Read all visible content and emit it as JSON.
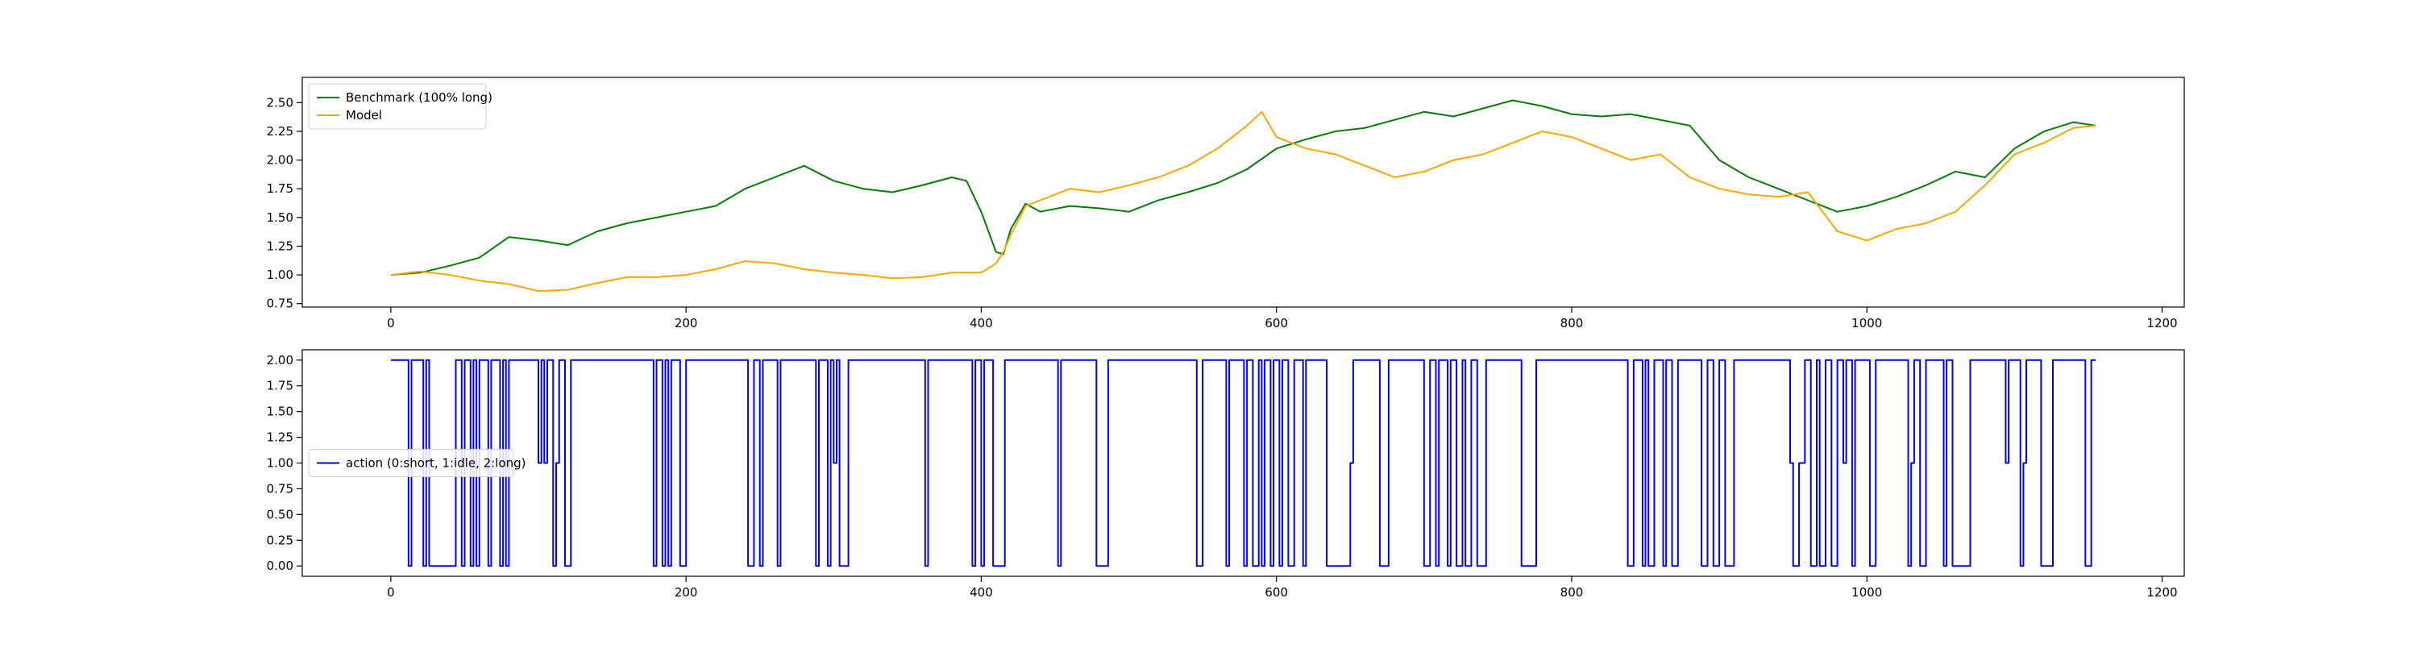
{
  "chart_data": [
    {
      "type": "line",
      "title": "",
      "xlabel": "",
      "ylabel": "",
      "xlim": [
        -60,
        1215
      ],
      "ylim": [
        0.72,
        2.72
      ],
      "xticks": [
        0,
        200,
        400,
        600,
        800,
        1000,
        1200
      ],
      "xtick_labels": [
        "0",
        "200",
        "400",
        "600",
        "800",
        "1000",
        "1200"
      ],
      "yticks": [
        0.75,
        1.0,
        1.25,
        1.5,
        1.75,
        2.0,
        2.25,
        2.5
      ],
      "ytick_labels": [
        "0.75",
        "1.00",
        "1.25",
        "1.50",
        "1.75",
        "2.00",
        "2.25",
        "2.50"
      ],
      "grid": false,
      "legend_position": "upper left",
      "series": [
        {
          "name": "Benchmark (100% long)",
          "color": "#008000",
          "x": [
            0,
            20,
            40,
            60,
            80,
            100,
            120,
            140,
            160,
            180,
            200,
            220,
            240,
            260,
            280,
            300,
            320,
            340,
            360,
            380,
            390,
            400,
            410,
            415,
            420,
            430,
            440,
            460,
            480,
            500,
            520,
            540,
            560,
            580,
            600,
            620,
            640,
            660,
            680,
            700,
            720,
            740,
            760,
            780,
            800,
            820,
            840,
            860,
            880,
            900,
            920,
            940,
            960,
            980,
            1000,
            1020,
            1040,
            1060,
            1080,
            1100,
            1120,
            1140,
            1155
          ],
          "values": [
            1.0,
            1.02,
            1.08,
            1.15,
            1.33,
            1.3,
            1.26,
            1.38,
            1.45,
            1.5,
            1.55,
            1.6,
            1.75,
            1.85,
            1.95,
            1.82,
            1.75,
            1.72,
            1.78,
            1.85,
            1.82,
            1.55,
            1.2,
            1.18,
            1.4,
            1.62,
            1.55,
            1.6,
            1.58,
            1.55,
            1.65,
            1.72,
            1.8,
            1.92,
            2.1,
            2.18,
            2.25,
            2.28,
            2.35,
            2.42,
            2.38,
            2.45,
            2.52,
            2.47,
            2.4,
            2.38,
            2.4,
            2.35,
            2.3,
            2.0,
            1.85,
            1.75,
            1.65,
            1.55,
            1.6,
            1.68,
            1.78,
            1.9,
            1.85,
            2.1,
            2.25,
            2.33,
            2.3
          ]
        },
        {
          "name": "Model",
          "color": "#FFA500",
          "x": [
            0,
            20,
            40,
            60,
            80,
            100,
            120,
            140,
            160,
            180,
            200,
            220,
            240,
            260,
            280,
            300,
            320,
            340,
            360,
            380,
            400,
            410,
            415,
            420,
            430,
            440,
            460,
            480,
            500,
            520,
            540,
            560,
            580,
            590,
            600,
            620,
            640,
            660,
            680,
            700,
            720,
            740,
            760,
            780,
            800,
            820,
            840,
            860,
            880,
            900,
            920,
            940,
            960,
            980,
            1000,
            1020,
            1040,
            1060,
            1080,
            1100,
            1120,
            1140,
            1155
          ],
          "values": [
            1.0,
            1.03,
            1.0,
            0.95,
            0.92,
            0.86,
            0.87,
            0.93,
            0.98,
            0.98,
            1.0,
            1.05,
            1.12,
            1.1,
            1.05,
            1.02,
            1.0,
            0.97,
            0.98,
            1.02,
            1.02,
            1.1,
            1.2,
            1.35,
            1.6,
            1.65,
            1.75,
            1.72,
            1.78,
            1.85,
            1.95,
            2.1,
            2.3,
            2.42,
            2.2,
            2.1,
            2.05,
            1.95,
            1.85,
            1.9,
            2.0,
            2.05,
            2.15,
            2.25,
            2.2,
            2.1,
            2.0,
            2.05,
            1.85,
            1.75,
            1.7,
            1.68,
            1.72,
            1.38,
            1.3,
            1.4,
            1.45,
            1.55,
            1.78,
            2.05,
            2.15,
            2.28,
            2.3
          ]
        }
      ],
      "legend": [
        {
          "label": "Benchmark (100% long)",
          "color": "#008000"
        },
        {
          "label": "Model",
          "color": "#FFA500"
        }
      ]
    },
    {
      "type": "line",
      "title": "",
      "xlabel": "",
      "ylabel": "",
      "xlim": [
        -60,
        1215
      ],
      "ylim": [
        -0.1,
        2.1
      ],
      "xticks": [
        0,
        200,
        400,
        600,
        800,
        1000,
        1200
      ],
      "xtick_labels": [
        "0",
        "200",
        "400",
        "600",
        "800",
        "1000",
        "1200"
      ],
      "yticks": [
        0.0,
        0.25,
        0.5,
        0.75,
        1.0,
        1.25,
        1.5,
        1.75,
        2.0
      ],
      "ytick_labels": [
        "0.00",
        "0.25",
        "0.50",
        "0.75",
        "1.00",
        "1.25",
        "1.50",
        "1.75",
        "2.00"
      ],
      "grid": false,
      "legend_position": "center left",
      "series": [
        {
          "name": "action (0:short, 1:idle, 2:long)",
          "color": "#0000FF",
          "step_segments": [
            [
              0,
              2
            ],
            [
              12,
              0
            ],
            [
              14,
              2
            ],
            [
              22,
              0
            ],
            [
              24,
              2
            ],
            [
              26,
              0
            ],
            [
              44,
              2
            ],
            [
              48,
              0
            ],
            [
              50,
              2
            ],
            [
              54,
              0
            ],
            [
              56,
              2
            ],
            [
              58,
              0
            ],
            [
              60,
              2
            ],
            [
              66,
              0
            ],
            [
              68,
              2
            ],
            [
              74,
              0
            ],
            [
              76,
              2
            ],
            [
              78,
              0
            ],
            [
              80,
              2
            ],
            [
              100,
              1
            ],
            [
              102,
              2
            ],
            [
              104,
              1
            ],
            [
              106,
              2
            ],
            [
              110,
              0
            ],
            [
              112,
              1
            ],
            [
              114,
              2
            ],
            [
              118,
              0
            ],
            [
              122,
              2
            ],
            [
              178,
              0
            ],
            [
              180,
              2
            ],
            [
              184,
              0
            ],
            [
              186,
              2
            ],
            [
              188,
              0
            ],
            [
              190,
              2
            ],
            [
              196,
              0
            ],
            [
              200,
              2
            ],
            [
              242,
              0
            ],
            [
              246,
              2
            ],
            [
              250,
              0
            ],
            [
              252,
              2
            ],
            [
              262,
              0
            ],
            [
              264,
              2
            ],
            [
              288,
              0
            ],
            [
              290,
              2
            ],
            [
              296,
              0
            ],
            [
              298,
              2
            ],
            [
              300,
              1
            ],
            [
              302,
              2
            ],
            [
              304,
              0
            ],
            [
              310,
              2
            ],
            [
              362,
              0
            ],
            [
              364,
              2
            ],
            [
              394,
              0
            ],
            [
              396,
              2
            ],
            [
              400,
              0
            ],
            [
              402,
              2
            ],
            [
              408,
              0
            ],
            [
              416,
              2
            ],
            [
              452,
              0
            ],
            [
              454,
              2
            ],
            [
              478,
              0
            ],
            [
              486,
              2
            ],
            [
              546,
              0
            ],
            [
              550,
              2
            ],
            [
              566,
              0
            ],
            [
              568,
              2
            ],
            [
              578,
              0
            ],
            [
              580,
              2
            ],
            [
              584,
              0
            ],
            [
              588,
              2
            ],
            [
              590,
              0
            ],
            [
              592,
              2
            ],
            [
              596,
              0
            ],
            [
              598,
              2
            ],
            [
              602,
              0
            ],
            [
              604,
              2
            ],
            [
              608,
              0
            ],
            [
              612,
              2
            ],
            [
              618,
              0
            ],
            [
              620,
              2
            ],
            [
              634,
              0
            ],
            [
              650,
              1
            ],
            [
              652,
              2
            ],
            [
              670,
              0
            ],
            [
              676,
              2
            ],
            [
              700,
              0
            ],
            [
              704,
              2
            ],
            [
              708,
              0
            ],
            [
              710,
              2
            ],
            [
              716,
              0
            ],
            [
              718,
              2
            ],
            [
              722,
              0
            ],
            [
              726,
              2
            ],
            [
              728,
              0
            ],
            [
              732,
              2
            ],
            [
              736,
              0
            ],
            [
              742,
              2
            ],
            [
              766,
              0
            ],
            [
              776,
              2
            ],
            [
              838,
              0
            ],
            [
              842,
              2
            ],
            [
              848,
              0
            ],
            [
              850,
              2
            ],
            [
              852,
              0
            ],
            [
              856,
              2
            ],
            [
              862,
              0
            ],
            [
              864,
              2
            ],
            [
              868,
              0
            ],
            [
              872,
              2
            ],
            [
              888,
              0
            ],
            [
              892,
              2
            ],
            [
              896,
              0
            ],
            [
              900,
              2
            ],
            [
              904,
              0
            ],
            [
              910,
              2
            ],
            [
              948,
              1
            ],
            [
              950,
              0
            ],
            [
              954,
              1
            ],
            [
              958,
              2
            ],
            [
              962,
              0
            ],
            [
              966,
              2
            ],
            [
              968,
              0
            ],
            [
              972,
              2
            ],
            [
              976,
              0
            ],
            [
              980,
              2
            ],
            [
              984,
              1
            ],
            [
              986,
              2
            ],
            [
              990,
              0
            ],
            [
              992,
              2
            ],
            [
              1002,
              0
            ],
            [
              1006,
              2
            ],
            [
              1028,
              0
            ],
            [
              1030,
              1
            ],
            [
              1032,
              2
            ],
            [
              1036,
              0
            ],
            [
              1040,
              2
            ],
            [
              1052,
              0
            ],
            [
              1054,
              2
            ],
            [
              1058,
              0
            ],
            [
              1070,
              2
            ],
            [
              1094,
              1
            ],
            [
              1096,
              2
            ],
            [
              1104,
              0
            ],
            [
              1106,
              1
            ],
            [
              1108,
              2
            ],
            [
              1118,
              0
            ],
            [
              1126,
              2
            ],
            [
              1148,
              0
            ],
            [
              1152,
              2
            ],
            [
              1155,
              2
            ]
          ]
        }
      ],
      "legend": [
        {
          "label": "action (0:short, 1:idle, 2:long)",
          "color": "#0000FF"
        }
      ]
    }
  ]
}
